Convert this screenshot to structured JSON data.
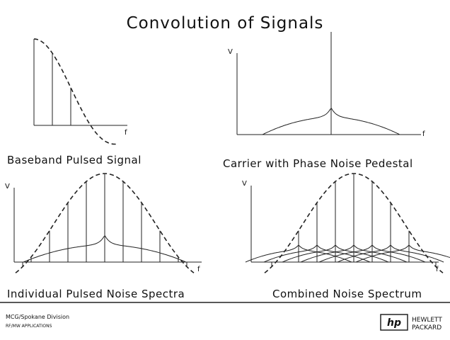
{
  "title": "Convolution of Signals",
  "panels": [
    {
      "caption": "Baseband Pulsed Signal",
      "x_label": "f"
    },
    {
      "caption": "Carrier with Phase Noise Pedestal",
      "y_label": "V",
      "x_label": "f"
    },
    {
      "caption": "Individual Pulsed Noise Spectra",
      "y_label": "V",
      "x_label": "f"
    },
    {
      "caption": "Combined Noise Spectrum",
      "y_label": "V",
      "x_label": "f"
    }
  ],
  "footer": {
    "division": "MCG/Spokane Division",
    "subtitle": "RF/MW APPLICATIONS",
    "logo": "hp",
    "company": [
      "HEWLETT",
      "PACKARD"
    ]
  }
}
